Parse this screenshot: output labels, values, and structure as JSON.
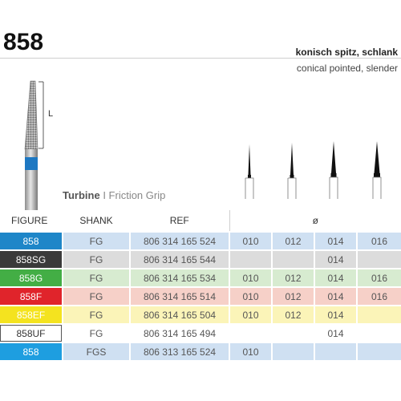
{
  "header": {
    "title": "858",
    "subtitle_de": "konisch spitz, schlank",
    "subtitle_en": "conical pointed, slender"
  },
  "bur_image": {
    "length_label": "L"
  },
  "grip_label": {
    "bold": "Turbine",
    "separator": " I ",
    "rest": "Friction Grip"
  },
  "table": {
    "headers": [
      "FIGURE",
      "SHANK",
      "REF",
      "ø"
    ],
    "rows": [
      {
        "figure": "858",
        "shank": "FG",
        "ref": "806 314 165 524",
        "sizes": [
          "010",
          "012",
          "014",
          "016"
        ],
        "fig_color": "#1e86c8",
        "row_color": "#cfe0f2",
        "fig_text": "#ffffff"
      },
      {
        "figure": "858SG",
        "shank": "FG",
        "ref": "806 314 165 544",
        "sizes": [
          "",
          "",
          "014",
          ""
        ],
        "fig_color": "#3a3a3a",
        "row_color": "#dcdcdc",
        "fig_text": "#ffffff"
      },
      {
        "figure": "858G",
        "shank": "FG",
        "ref": "806 314 165 534",
        "sizes": [
          "010",
          "012",
          "014",
          "016"
        ],
        "fig_color": "#43ae45",
        "row_color": "#d7ebd0",
        "fig_text": "#ffffff"
      },
      {
        "figure": "858F",
        "shank": "FG",
        "ref": "806 314 165 514",
        "sizes": [
          "010",
          "012",
          "014",
          "016"
        ],
        "fig_color": "#e0242b",
        "row_color": "#f6d0c8",
        "fig_text": "#ffffff"
      },
      {
        "figure": "858EF",
        "shank": "FG",
        "ref": "806 314 165 504",
        "sizes": [
          "010",
          "012",
          "014",
          ""
        ],
        "fig_color": "#f4e31f",
        "row_color": "#fbf4b8",
        "fig_text": "#ffffff"
      },
      {
        "figure": "858UF",
        "shank": "FG",
        "ref": "806 314 165 494",
        "sizes": [
          "",
          "",
          "014",
          ""
        ],
        "fig_color": "#ffffff",
        "row_color": "#ffffff",
        "fig_text": "#333333"
      },
      {
        "figure": "858",
        "shank": "FGS",
        "ref": "806 313 165 524",
        "sizes": [
          "010",
          "",
          "",
          ""
        ],
        "fig_color": "#1e9ee0",
        "row_color": "#cfe0f2",
        "fig_text": "#ffffff"
      }
    ]
  },
  "colors": {
    "rule": "#cfcfcf",
    "header_text": "#333333"
  }
}
